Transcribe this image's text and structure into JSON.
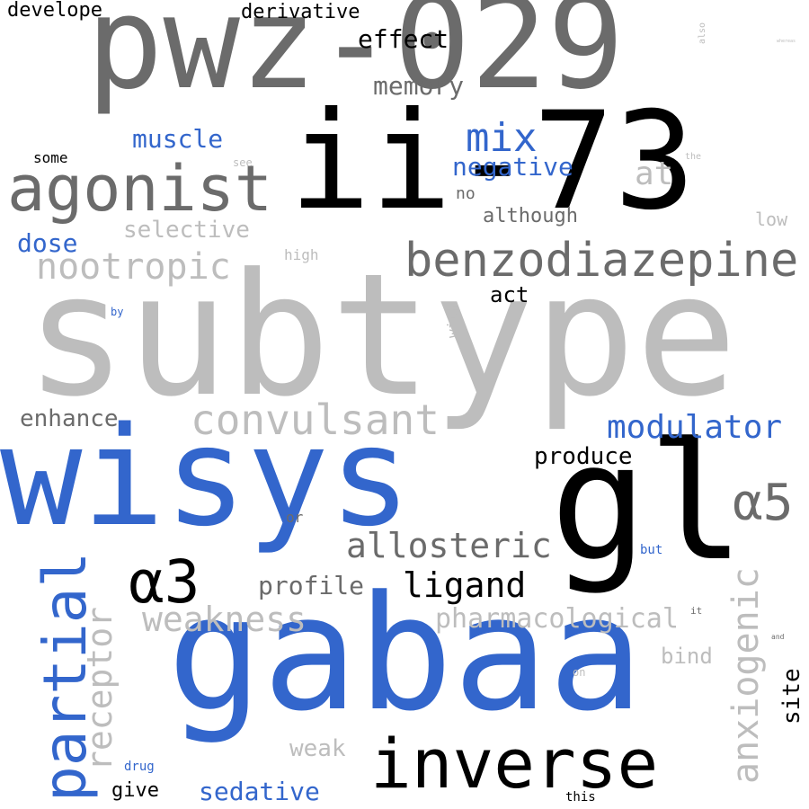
{
  "colors": {
    "dark_gray": "#6b6b6b",
    "light_gray": "#bdbdbd",
    "blue": "#3366cc",
    "black": "#000000",
    "background": "#ffffff"
  },
  "words": {
    "subtype": "subtype",
    "gabaa": "gabaa",
    "wisys": "wisys",
    "pwz029": "pwz-029",
    "ii73": "ii-73",
    "gl": "gl",
    "inverse": "inverse",
    "agonist": "agonist",
    "benzodiazepine": "benzodiazepine",
    "partial": "partial",
    "alpha3": "α3",
    "alpha5": "α5",
    "anxiogenic": "anxiogenic",
    "convulsant": "convulsant",
    "mix": "mix",
    "receptor": "receptor",
    "nootropic": "nootropic",
    "modulator": "modulator",
    "allosteric": "allosteric",
    "ligand": "ligand",
    "weakness": "weakness",
    "pharmacological": "pharmacological",
    "memory": "memory",
    "effect": "effect",
    "negative": "negative",
    "muscle": "muscle",
    "profile": "profile",
    "sedative": "sedative",
    "weak": "weak",
    "selective": "selective",
    "dose": "dose",
    "enhance": "enhance",
    "produce": "produce",
    "site": "site",
    "at": "at",
    "although": "although",
    "act": "act",
    "bind": "bind",
    "low": "low",
    "develope": "develope",
    "derivative": "derivative",
    "give": "give",
    "some": "some",
    "no": "no",
    "high": "high",
    "with": "with",
    "or": "or",
    "drug": "drug",
    "this": "this",
    "but": "but",
    "by": "by",
    "see": "see",
    "the": "the",
    "also": "also",
    "it": "it",
    "and": "and",
    "on": "on",
    "whereas": "whereas"
  }
}
